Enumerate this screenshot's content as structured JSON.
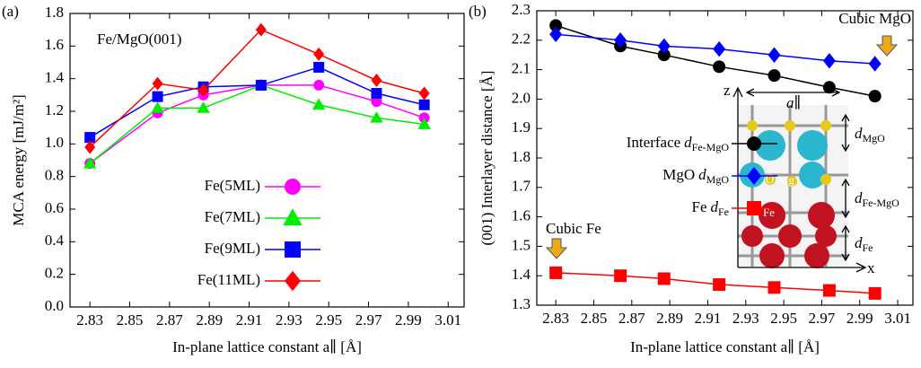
{
  "chart_data": [
    {
      "type": "line",
      "panel_label": "(a)",
      "annotation": "Fe/MgO(001)",
      "xlabel": "In-plane lattice constant a∥ [Å]",
      "ylabel": "MCA energy [mJ/m²]",
      "x": [
        2.83,
        2.864,
        2.887,
        2.916,
        2.945,
        2.974,
        2.998
      ],
      "xlim": [
        2.82,
        3.018
      ],
      "xticks": [
        2.83,
        2.85,
        2.87,
        2.89,
        2.91,
        2.93,
        2.95,
        2.97,
        2.99,
        3.01
      ],
      "ylim": [
        0,
        1.8
      ],
      "yticks": [
        {
          "value": 0,
          "label": "0.0"
        },
        0.2,
        0.4,
        0.6,
        0.8,
        {
          "value": 1,
          "label": "1.0"
        },
        1.2,
        1.4,
        1.6,
        1.8
      ],
      "series": [
        {
          "name": "Fe(5ML)",
          "color": "#ff00ff",
          "marker": "circle",
          "values": [
            0.88,
            1.19,
            1.3,
            1.36,
            1.36,
            1.26,
            1.16
          ]
        },
        {
          "name": "Fe(7ML)",
          "color": "#00ee00",
          "marker": "triangle",
          "values": [
            0.88,
            1.22,
            1.22,
            1.36,
            1.24,
            1.16,
            1.12
          ]
        },
        {
          "name": "Fe(9ML)",
          "color": "#0000ff",
          "marker": "square",
          "values": [
            1.04,
            1.29,
            1.35,
            1.36,
            1.47,
            1.31,
            1.24
          ]
        },
        {
          "name": "Fe(11ML)",
          "color": "#ff0000",
          "marker": "diamond",
          "values": [
            0.98,
            1.37,
            1.33,
            1.7,
            1.55,
            1.39,
            1.31
          ]
        }
      ]
    },
    {
      "type": "line",
      "panel_label": "(b)",
      "xlabel": "In-plane lattice constant a∥ [Å]",
      "ylabel": "(001) Interlayer distance [Å]",
      "x": [
        2.83,
        2.864,
        2.887,
        2.916,
        2.945,
        2.974,
        2.998
      ],
      "xlim": [
        2.82,
        3.018
      ],
      "xticks": [
        2.83,
        2.85,
        2.87,
        2.89,
        2.91,
        2.93,
        2.95,
        2.97,
        2.99,
        3.01
      ],
      "ylim": [
        1.3,
        2.3
      ],
      "yticks": [
        1.3,
        1.4,
        1.5,
        1.6,
        1.7,
        1.8,
        1.9,
        {
          "value": 2,
          "label": "2.0"
        },
        2.1,
        2.2,
        2.3
      ],
      "series": [
        {
          "name": "Interface",
          "symbol": "d",
          "subscript": "Fe-MgO",
          "color": "#000000",
          "marker": "circle",
          "values": [
            2.25,
            2.18,
            2.15,
            2.11,
            2.08,
            2.04,
            2.01
          ]
        },
        {
          "name": "MgO",
          "symbol": "d",
          "subscript": "MgO",
          "color": "#0000ff",
          "marker": "diamond",
          "values": [
            2.22,
            2.2,
            2.18,
            2.17,
            2.15,
            2.13,
            2.12
          ]
        },
        {
          "name": "Fe",
          "symbol": "d",
          "subscript": "Fe",
          "color": "#ff0000",
          "marker": "square",
          "values": [
            1.41,
            1.4,
            1.39,
            1.37,
            1.36,
            1.35,
            1.34
          ]
        }
      ],
      "annotations": [
        "Cubic MgO",
        "Cubic Fe"
      ],
      "inset": {
        "z": "z",
        "x": "x",
        "a": "a∥",
        "O": "O",
        "Mg": "Mg",
        "Fe": "Fe",
        "d_labels": [
          {
            "symbol": "d",
            "subscript": "MgO"
          },
          {
            "symbol": "d",
            "subscript": "Fe-MgO"
          },
          {
            "symbol": "d",
            "subscript": "Fe"
          }
        ]
      }
    }
  ]
}
